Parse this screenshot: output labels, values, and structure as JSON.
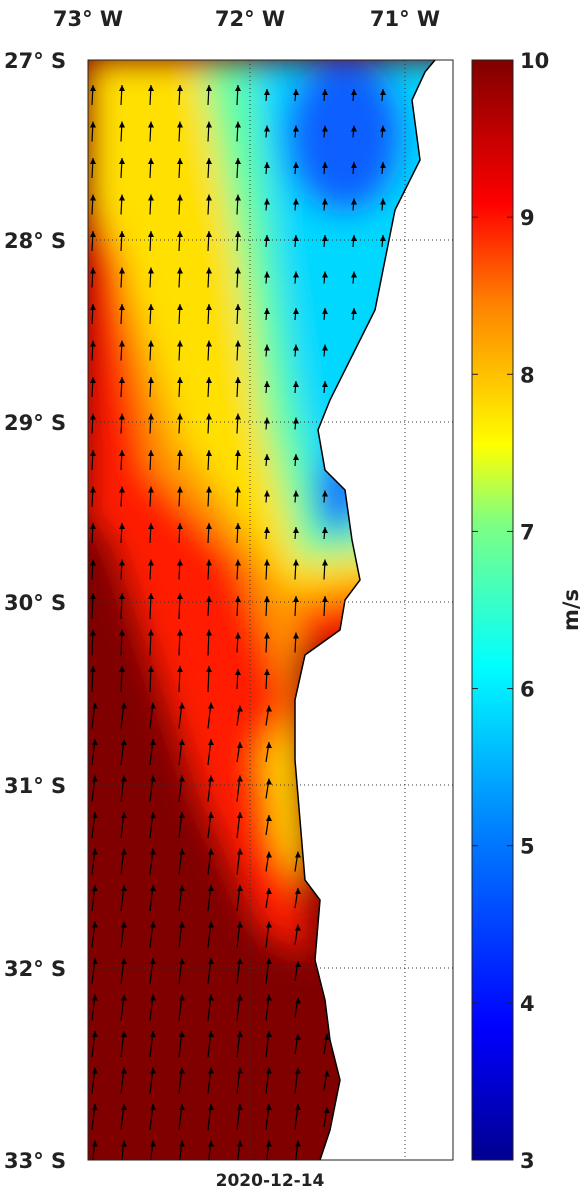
{
  "map": {
    "lon_labels": [
      "73° W",
      "72° W",
      "71° W"
    ],
    "lat_labels": [
      "27° S",
      "28° S",
      "29° S",
      "30° S",
      "31° S",
      "32° S",
      "33° S"
    ],
    "date": "2020-12-14"
  },
  "colorbar": {
    "label": "m/s",
    "lim": [
      3,
      10
    ],
    "ticks": [
      3,
      4,
      5,
      6,
      7,
      8,
      9,
      10
    ]
  }
}
